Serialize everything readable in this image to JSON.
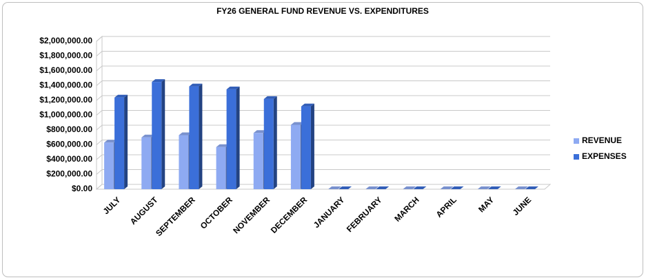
{
  "chart_data": {
    "type": "bar",
    "title": "FY26 GENERAL FUND REVENUE VS. EXPENDITURES",
    "categories": [
      "JULY",
      "AUGUST",
      "SEPTEMBER",
      "OCTOBER",
      "NOVEMBER",
      "DECEMBER",
      "JANUARY",
      "FEBRUARY",
      "MARCH",
      "APRIL",
      "MAY",
      "JUNE"
    ],
    "series": [
      {
        "name": "REVENUE",
        "color": "#8eaaf2",
        "values": [
          630000,
          700000,
          730000,
          570000,
          760000,
          870000,
          0,
          0,
          0,
          0,
          0,
          0
        ]
      },
      {
        "name": "EXPENSES",
        "color": "#3b6fd9",
        "values": [
          1240000,
          1450000,
          1390000,
          1350000,
          1220000,
          1120000,
          0,
          0,
          0,
          0,
          0,
          0
        ]
      }
    ],
    "ylim": [
      0,
      2000000
    ],
    "yticks": [
      {
        "value": 0,
        "label": "$0.00"
      },
      {
        "value": 200000,
        "label": "$200,000.00"
      },
      {
        "value": 400000,
        "label": "$400,000.00"
      },
      {
        "value": 600000,
        "label": "$600,000.00"
      },
      {
        "value": 800000,
        "label": "$800,000.00"
      },
      {
        "value": 1000000,
        "label": "$1,000,000.00"
      },
      {
        "value": 1200000,
        "label": "$1,200,000.00"
      },
      {
        "value": 1400000,
        "label": "$1,400,000.00"
      },
      {
        "value": 1600000,
        "label": "$1,600,000.00"
      },
      {
        "value": 1800000,
        "label": "$1,800,000.00"
      },
      {
        "value": 2000000,
        "label": "$2,000,000.00"
      }
    ],
    "grid": true,
    "legend": "right"
  }
}
